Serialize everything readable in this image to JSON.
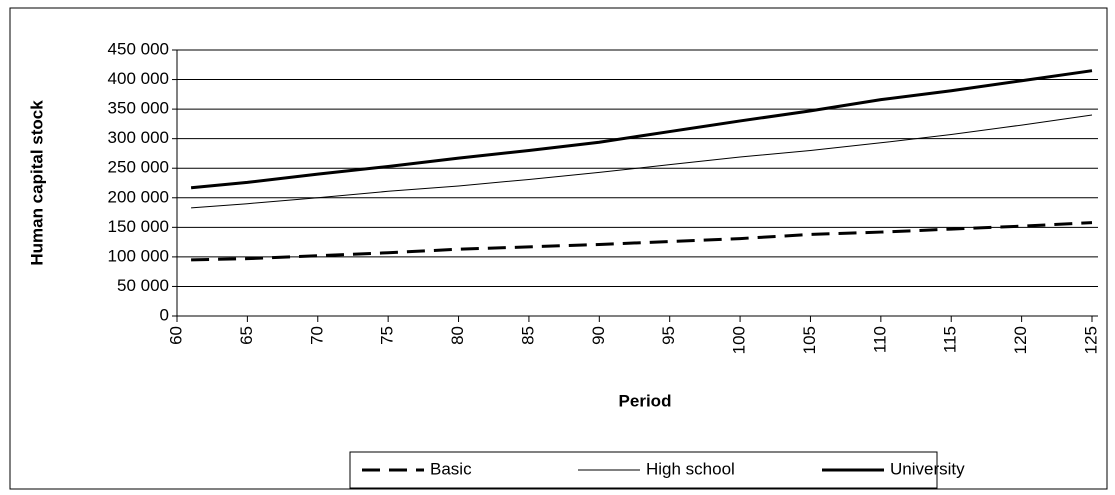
{
  "chart_data": {
    "type": "line",
    "xlabel": "Period",
    "ylabel": "Human capital stock",
    "x": [
      61,
      65,
      70,
      75,
      80,
      85,
      90,
      95,
      100,
      105,
      110,
      115,
      120,
      125
    ],
    "series": [
      {
        "name": "Basic",
        "color": "#000000",
        "style": "dashed",
        "width": 3,
        "values": [
          95000,
          97000,
          102000,
          107000,
          113000,
          117000,
          121000,
          126000,
          131000,
          138000,
          142000,
          147000,
          152000,
          158000
        ]
      },
      {
        "name": "High school",
        "color": "#000000",
        "style": "solid",
        "width": 1,
        "values": [
          183000,
          190000,
          200000,
          211000,
          220000,
          231000,
          243000,
          256000,
          269000,
          280000,
          293000,
          307000,
          323000,
          340000
        ]
      },
      {
        "name": "University",
        "color": "#000000",
        "style": "solid",
        "width": 3,
        "values": [
          217000,
          226000,
          240000,
          253000,
          267000,
          280000,
          294000,
          312000,
          330000,
          347000,
          366000,
          381000,
          398000,
          415000
        ]
      }
    ],
    "xlim": [
      60,
      125
    ],
    "xticks": [
      60,
      65,
      70,
      75,
      80,
      85,
      90,
      95,
      100,
      105,
      110,
      115,
      120,
      125
    ],
    "ylim": [
      0,
      450000
    ],
    "yticks": [
      0,
      {
        "value": 50000,
        "label": "50 000"
      },
      {
        "value": 100000,
        "label": "100 000"
      },
      {
        "value": 150000,
        "label": "150 000"
      },
      {
        "value": 200000,
        "label": "200 000"
      },
      {
        "value": 250000,
        "label": "250 000"
      },
      {
        "value": 300000,
        "label": "300 000"
      },
      {
        "value": 350000,
        "label": "350 000"
      },
      {
        "value": 400000,
        "label": "400 000"
      },
      {
        "value": 450000,
        "label": "450 000"
      }
    ],
    "grid": true,
    "legend": "bottom"
  }
}
